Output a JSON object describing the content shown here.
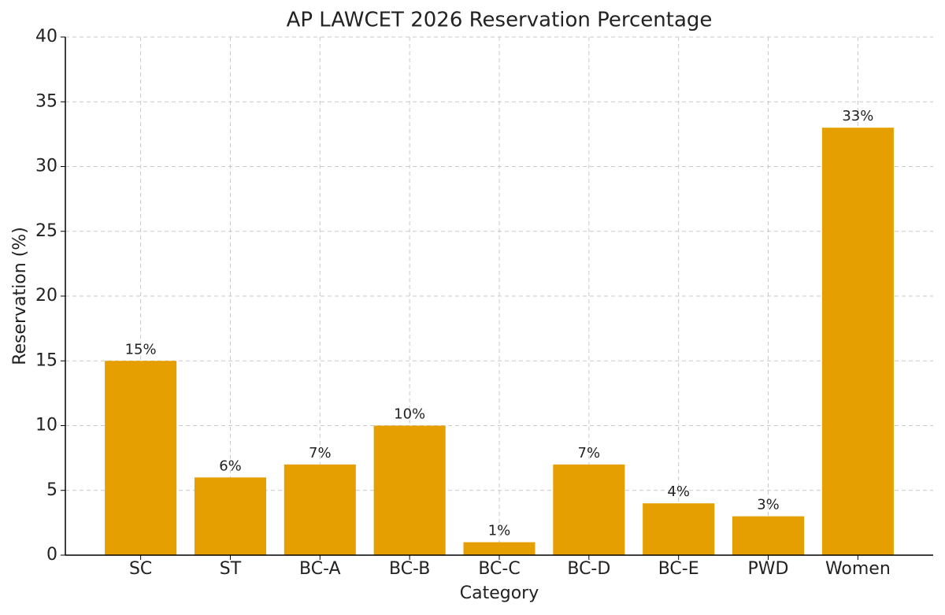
{
  "chart_data": {
    "type": "bar",
    "title": "AP LAWCET 2026 Reservation Percentage",
    "x_label": "Category",
    "y_label": "Reservation (%)",
    "categories": [
      "SC",
      "ST",
      "BC-A",
      "BC-B",
      "BC-C",
      "BC-D",
      "BC-E",
      "PWD",
      "Women"
    ],
    "values": [
      15,
      6,
      7,
      10,
      1,
      7,
      4,
      3,
      33
    ],
    "value_labels": [
      "15%",
      "6%",
      "7%",
      "10%",
      "1%",
      "7%",
      "4%",
      "3%",
      "33%"
    ],
    "color": "#e69f00",
    "ylim": [
      0,
      40
    ],
    "yticks": [
      0,
      5,
      10,
      15,
      20,
      25,
      30,
      35,
      40
    ],
    "grid": true
  }
}
